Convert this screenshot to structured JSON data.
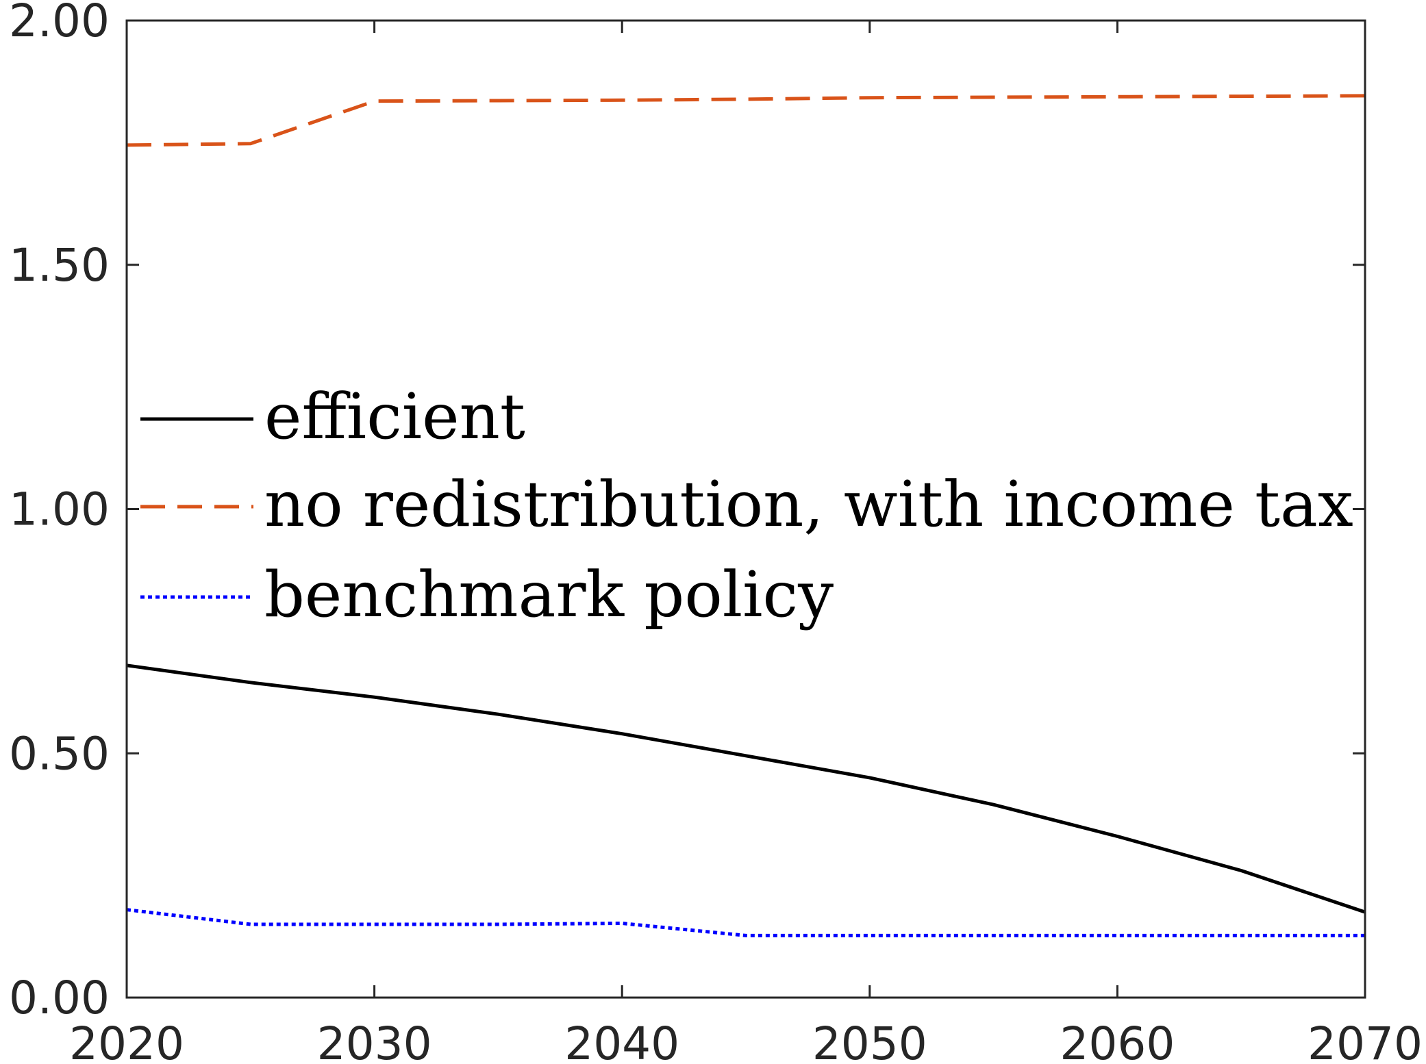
{
  "chart_data": {
    "type": "line",
    "title": "",
    "xlabel": "",
    "ylabel": "",
    "xlim": [
      2020,
      2070
    ],
    "ylim": [
      0,
      2
    ],
    "xticks": [
      2020,
      2030,
      2040,
      2050,
      2060,
      2070
    ],
    "xtick_labels": [
      "2020",
      "2030",
      "2040",
      "2050",
      "2060",
      "2070"
    ],
    "yticks": [
      0,
      0.5,
      1,
      1.5,
      2
    ],
    "ytick_labels": [
      "0.00",
      "0.50",
      "1.00",
      "1.50",
      "2.00"
    ],
    "grid": false,
    "legend_position": "middle-left",
    "series": [
      {
        "name": "efficient",
        "color": "#000000",
        "style": "solid",
        "x": [
          2020,
          2025,
          2030,
          2035,
          2040,
          2045,
          2050,
          2055,
          2060,
          2065,
          2070
        ],
        "y": [
          0.68,
          0.645,
          0.615,
          0.58,
          0.54,
          0.495,
          0.45,
          0.395,
          0.33,
          0.26,
          0.175
        ]
      },
      {
        "name": "no redistribution, with income tax",
        "color": "#D95319",
        "style": "dashed",
        "x": [
          2020,
          2025,
          2030,
          2035,
          2040,
          2045,
          2050,
          2055,
          2060,
          2065,
          2070
        ],
        "y": [
          1.745,
          1.748,
          1.835,
          1.836,
          1.837,
          1.839,
          1.842,
          1.843,
          1.844,
          1.845,
          1.846
        ]
      },
      {
        "name": "benchmark policy",
        "color": "#0000FF",
        "style": "dotted",
        "x": [
          2020,
          2025,
          2030,
          2035,
          2040,
          2045,
          2050,
          2055,
          2060,
          2065,
          2070
        ],
        "y": [
          0.18,
          0.15,
          0.15,
          0.15,
          0.152,
          0.127,
          0.127,
          0.127,
          0.127,
          0.127,
          0.127
        ]
      }
    ]
  }
}
